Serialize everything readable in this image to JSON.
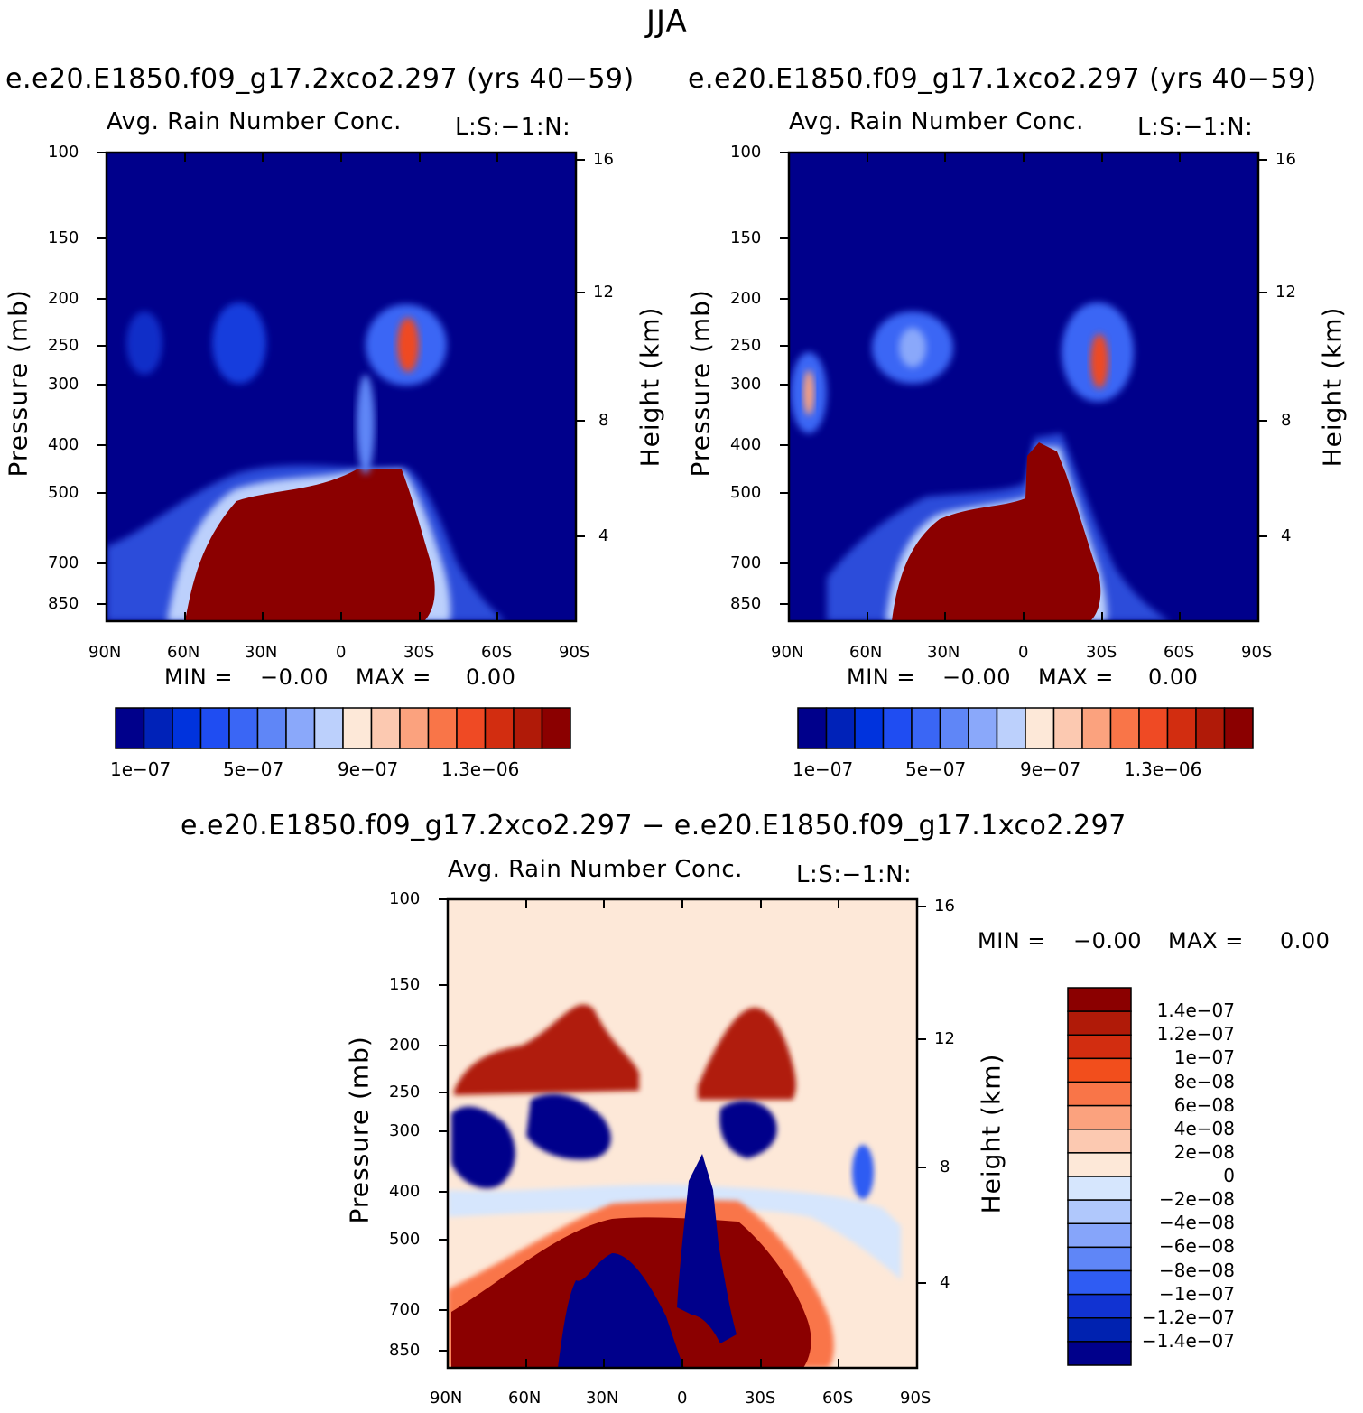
{
  "page": {
    "title": "JJA"
  },
  "colors": {
    "background": "#00008b",
    "diff_background": "#fde8d8",
    "rain_core": "#8b0000"
  },
  "chart_data": [
    {
      "type": "heatmap",
      "case_title": "e.e20.E1850.f09_g17.2xco2.297 (yrs 40−59)",
      "var_title": "Avg. Rain Number Conc.",
      "units_label": "L:S:−1:N:",
      "xlabel": "",
      "ylabel": "Pressure (mb)",
      "y2label": "Height (km)",
      "x_ticks": [
        "90N",
        "60N",
        "30N",
        "0",
        "30S",
        "60S",
        "90S"
      ],
      "y_ticks": [
        "100",
        "150",
        "200",
        "250",
        "300",
        "400",
        "500",
        "700",
        "850"
      ],
      "y2_ticks": [
        "16",
        "12",
        "8",
        "4"
      ],
      "ylim": [
        100,
        925
      ],
      "min_label": "MIN =",
      "min_value": "−0.00",
      "max_label": "MAX =",
      "max_value": "0.00",
      "colorbar_labels": [
        "1e−07",
        "5e−07",
        "9e−07",
        "1.3e−06"
      ],
      "colorbar_colors": [
        "#00008b",
        "#0022b8",
        "#0033dd",
        "#1f4df2",
        "#3a66f5",
        "#5f86f7",
        "#8aa8fa",
        "#bcd0fc",
        "#fde8d8",
        "#fcc9b1",
        "#fba27e",
        "#f97548",
        "#ef4a24",
        "#d22d10",
        "#b01a08",
        "#8b0000"
      ]
    },
    {
      "type": "heatmap",
      "case_title": "e.e20.E1850.f09_g17.1xco2.297 (yrs 40−59)",
      "var_title": "Avg. Rain Number Conc.",
      "units_label": "L:S:−1:N:",
      "xlabel": "",
      "ylabel": "Pressure (mb)",
      "y2label": "Height (km)",
      "x_ticks": [
        "90N",
        "60N",
        "30N",
        "0",
        "30S",
        "60S",
        "90S"
      ],
      "y_ticks": [
        "100",
        "150",
        "200",
        "250",
        "300",
        "400",
        "500",
        "700",
        "850"
      ],
      "y2_ticks": [
        "16",
        "12",
        "8",
        "4"
      ],
      "ylim": [
        100,
        925
      ],
      "min_label": "MIN =",
      "min_value": "−0.00",
      "max_label": "MAX =",
      "max_value": "0.00",
      "colorbar_labels": [
        "1e−07",
        "5e−07",
        "9e−07",
        "1.3e−06"
      ],
      "colorbar_colors": [
        "#00008b",
        "#0022b8",
        "#0033dd",
        "#1f4df2",
        "#3a66f5",
        "#5f86f7",
        "#8aa8fa",
        "#bcd0fc",
        "#fde8d8",
        "#fcc9b1",
        "#fba27e",
        "#f97548",
        "#ef4a24",
        "#d22d10",
        "#b01a08",
        "#8b0000"
      ]
    },
    {
      "type": "heatmap",
      "case_title": "e.e20.E1850.f09_g17.2xco2.297 − e.e20.E1850.f09_g17.1xco2.297",
      "var_title": "Avg. Rain Number Conc.",
      "units_label": "L:S:−1:N:",
      "xlabel": "",
      "ylabel": "Pressure (mb)",
      "y2label": "Height (km)",
      "x_ticks": [
        "90N",
        "60N",
        "30N",
        "0",
        "30S",
        "60S",
        "90S"
      ],
      "y_ticks": [
        "100",
        "150",
        "200",
        "250",
        "300",
        "400",
        "500",
        "700",
        "850"
      ],
      "y2_ticks": [
        "16",
        "12",
        "8",
        "4"
      ],
      "ylim": [
        100,
        925
      ],
      "min_label": "MIN =",
      "min_value": "−0.00",
      "max_label": "MAX =",
      "max_value": "0.00",
      "colorbar_labels": [
        "1.4e−07",
        "1.2e−07",
        "1e−07",
        "8e−08",
        "6e−08",
        "4e−08",
        "2e−08",
        "0",
        "−2e−08",
        "−4e−08",
        "−6e−08",
        "−8e−08",
        "−1e−07",
        "−1.2e−07",
        "−1.4e−07"
      ],
      "colorbar_colors": [
        "#8b0000",
        "#b01a08",
        "#d22d10",
        "#f24e1c",
        "#f97548",
        "#fba27e",
        "#fcc9b1",
        "#fde8d8",
        "#d6e6fd",
        "#b0c8fc",
        "#86a5fa",
        "#5f86f7",
        "#2f5cf3",
        "#1133d2",
        "#0022b0",
        "#00008b"
      ]
    }
  ]
}
